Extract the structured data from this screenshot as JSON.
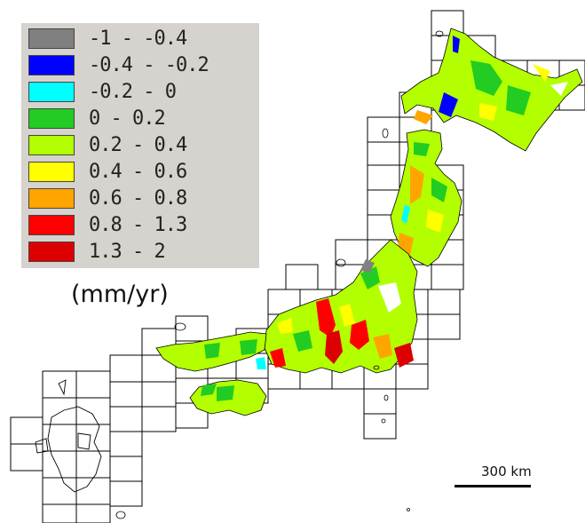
{
  "legend": {
    "unit": "(mm/yr)",
    "items": [
      {
        "label": "-1 - -0.4",
        "color": "#808080"
      },
      {
        "label": "-0.4 - -0.2",
        "color": "#0000ff"
      },
      {
        "label": "-0.2 - 0",
        "color": "#00ffff"
      },
      {
        "label": "0 - 0.2",
        "color": "#22cc22"
      },
      {
        "label": "0.2 - 0.4",
        "color": "#b3ff00"
      },
      {
        "label": "0.4 - 0.6",
        "color": "#ffff00"
      },
      {
        "label": "0.6 - 0.8",
        "color": "#ffa500"
      },
      {
        "label": "0.8 - 1.3",
        "color": "#ff0000"
      },
      {
        "label": "1.3 - 2",
        "color": "#dd0000"
      }
    ]
  },
  "scale_bar": {
    "label": "300 km"
  }
}
